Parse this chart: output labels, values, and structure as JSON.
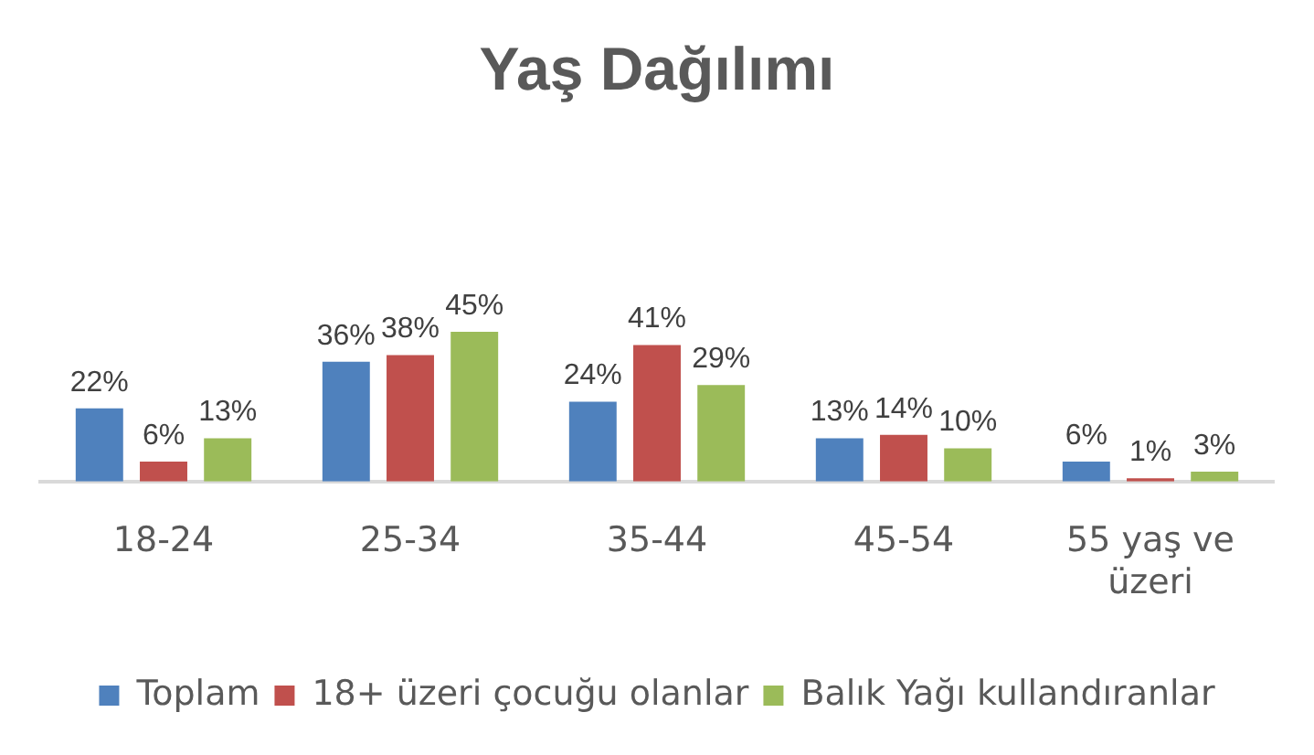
{
  "chart_data": {
    "type": "bar",
    "title": "Yaş Dağılımı",
    "categories": [
      "18-24",
      "25-34",
      "35-44",
      "45-54",
      "55 yaş ve üzeri"
    ],
    "series": [
      {
        "name": "Toplam",
        "color": "#4f81bd",
        "values": [
          22,
          36,
          24,
          13,
          6
        ],
        "value_labels": [
          "22%",
          "36%",
          "24%",
          "13%",
          "6%"
        ]
      },
      {
        "name": "18+ üzeri çocuğu olanlar",
        "color": "#c0504d",
        "values": [
          6,
          38,
          41,
          14,
          1
        ],
        "value_labels": [
          "6%",
          "38%",
          "41%",
          "14%",
          "1%"
        ]
      },
      {
        "name": "Balık Yağı kullandıranlar",
        "color": "#9bbb59",
        "values": [
          13,
          45,
          29,
          10,
          3
        ],
        "value_labels": [
          "13%",
          "45%",
          "29%",
          "10%",
          "3%"
        ]
      }
    ],
    "legend": "bottom"
  }
}
